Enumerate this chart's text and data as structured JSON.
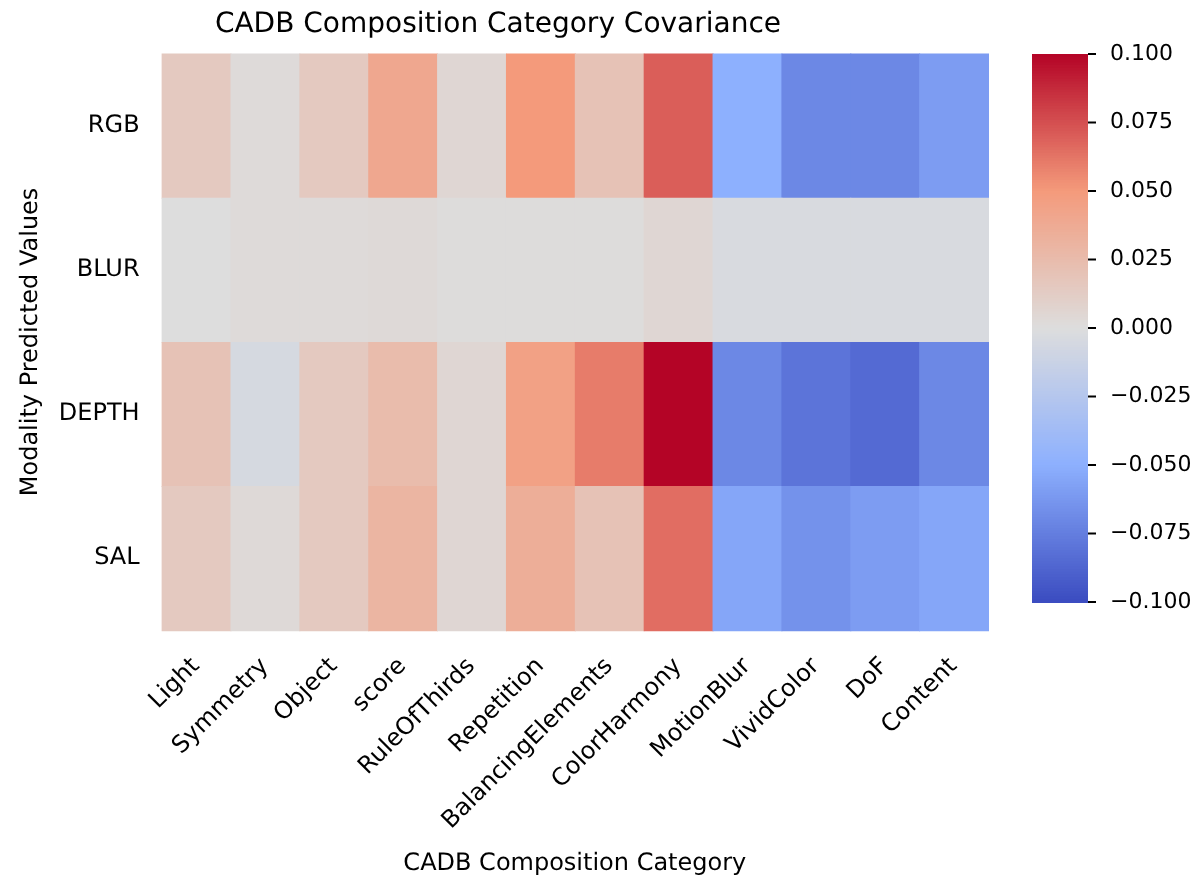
{
  "chart_data": {
    "type": "heatmap",
    "title": "CADB Composition Category Covariance",
    "xlabel": "CADB Composition Category",
    "ylabel": "Modality Predicted Values",
    "categories": [
      "Light",
      "Symmetry",
      "Object",
      "score",
      "RuleOfThirds",
      "Repetition",
      "BalancingElements",
      "ColorHarmony",
      "MotionBlur",
      "VividColor",
      "DoF",
      "Content"
    ],
    "y_categories": [
      "RGB",
      "BLUR",
      "DEPTH",
      "SAL"
    ],
    "cells": [
      [
        0.015,
        0.002,
        0.015,
        0.04,
        0.005,
        0.05,
        0.02,
        0.07,
        -0.05,
        -0.07,
        -0.07,
        -0.06
      ],
      [
        0,
        0.002,
        0.002,
        0.003,
        0.001,
        0.001,
        0.001,
        0.005,
        -0.003,
        -0.003,
        -0.003,
        -0.003
      ],
      [
        0.02,
        -0.005,
        0.015,
        0.025,
        0.005,
        0.045,
        0.06,
        0.1,
        -0.07,
        -0.08,
        -0.085,
        -0.07
      ],
      [
        0.015,
        0.003,
        0.015,
        0.03,
        0.005,
        0.035,
        0.02,
        0.065,
        -0.055,
        -0.065,
        -0.06,
        -0.055
      ]
    ],
    "clim": [
      -0.1,
      0.1
    ],
    "cticks": [
      {
        "value": 0.1,
        "label": "0.100"
      },
      {
        "value": 0.075,
        "label": "0.075"
      },
      {
        "value": 0.05,
        "label": "0.050"
      },
      {
        "value": 0.025,
        "label": "0.025"
      },
      {
        "value": 0,
        "label": "0.000"
      },
      {
        "value": -0.025,
        "label": "−0.025"
      },
      {
        "value": -0.05,
        "label": "−0.050"
      },
      {
        "value": -0.075,
        "label": "−0.075"
      },
      {
        "value": -0.1,
        "label": "−0.100"
      }
    ]
  }
}
